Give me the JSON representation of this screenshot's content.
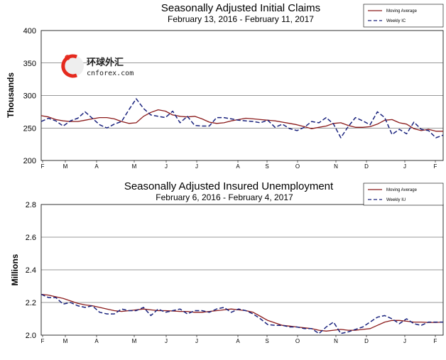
{
  "watermark": {
    "line1": "环球外汇",
    "line2": "cnforex.com"
  },
  "chart_data": [
    {
      "type": "line",
      "title": "Seasonally Adjusted Initial Claims",
      "subtitle": "February 13, 2016  -  February 11, 2017",
      "ylabel": "Thousands",
      "xlabel": "",
      "ylim": [
        200,
        400
      ],
      "yticks": [
        "200",
        "250",
        "300",
        "350",
        "400"
      ],
      "ytick_values": [
        200,
        250,
        300,
        350,
        400
      ],
      "grid": "horizontal",
      "legend_position": "top-right",
      "x_tick_labels": [
        "F",
        "M",
        "A",
        "M",
        "J",
        "J",
        "A",
        "S",
        "O",
        "N",
        "D",
        "J",
        "F"
      ],
      "series": [
        {
          "name": "Moving Average",
          "color": "#8b1a1a",
          "style": "solid",
          "values": [
            269,
            267,
            263,
            261,
            260,
            260,
            262,
            264,
            266,
            266,
            264,
            260,
            257,
            258,
            268,
            274,
            278,
            276,
            270,
            268,
            267,
            268,
            264,
            259,
            257,
            258,
            261,
            263,
            265,
            264,
            263,
            262,
            261,
            259,
            257,
            255,
            252,
            249,
            251,
            253,
            257,
            258,
            254,
            251,
            251,
            252,
            256,
            262,
            263,
            258,
            256,
            249,
            246,
            248,
            245,
            245
          ]
        },
        {
          "name": "Weekly IC",
          "color": "#1a237e",
          "style": "dashed",
          "values": [
            260,
            265,
            261,
            253,
            261,
            265,
            275,
            265,
            255,
            250,
            256,
            260,
            278,
            295,
            280,
            270,
            268,
            266,
            276,
            258,
            268,
            254,
            253,
            253,
            266,
            266,
            264,
            262,
            261,
            260,
            258,
            262,
            251,
            256,
            249,
            246,
            251,
            260,
            258,
            266,
            256,
            235,
            252,
            266,
            261,
            255,
            275,
            266,
            240,
            248,
            241,
            259,
            248,
            246,
            235,
            239
          ]
        }
      ]
    },
    {
      "type": "line",
      "title": "Seasonally Adjusted Insured Unemployment",
      "subtitle": "February 6, 2016  -  February 4, 2017",
      "ylabel": "Millions",
      "xlabel": "",
      "ylim": [
        2.0,
        2.8
      ],
      "yticks": [
        "2.0",
        "2.2",
        "2.4",
        "2.6",
        "2.8"
      ],
      "ytick_values": [
        2.0,
        2.2,
        2.4,
        2.6,
        2.8
      ],
      "grid": "horizontal",
      "legend_position": "top-right",
      "x_tick_labels": [
        "F",
        "M",
        "A",
        "M",
        "J",
        "J",
        "A",
        "S",
        "O",
        "N",
        "D",
        "J",
        "F"
      ],
      "series": [
        {
          "name": "Moving Average",
          "color": "#8b1a1a",
          "style": "solid",
          "values": [
            2.25,
            2.245,
            2.235,
            2.225,
            2.21,
            2.195,
            2.185,
            2.18,
            2.17,
            2.16,
            2.15,
            2.145,
            2.15,
            2.155,
            2.16,
            2.155,
            2.15,
            2.15,
            2.148,
            2.145,
            2.145,
            2.14,
            2.14,
            2.145,
            2.15,
            2.155,
            2.16,
            2.155,
            2.15,
            2.14,
            2.115,
            2.09,
            2.075,
            2.06,
            2.055,
            2.05,
            2.045,
            2.04,
            2.03,
            2.025,
            2.03,
            2.035,
            2.03,
            2.03,
            2.035,
            2.04,
            2.06,
            2.08,
            2.09,
            2.09,
            2.085,
            2.08,
            2.08,
            2.078,
            2.078,
            2.08
          ]
        },
        {
          "name": "Weekly IU",
          "color": "#1a237e",
          "style": "dashed",
          "values": [
            2.25,
            2.23,
            2.23,
            2.19,
            2.2,
            2.18,
            2.17,
            2.18,
            2.14,
            2.13,
            2.13,
            2.16,
            2.15,
            2.15,
            2.17,
            2.12,
            2.16,
            2.14,
            2.15,
            2.16,
            2.13,
            2.15,
            2.15,
            2.14,
            2.16,
            2.17,
            2.14,
            2.16,
            2.15,
            2.13,
            2.1,
            2.065,
            2.06,
            2.06,
            2.05,
            2.05,
            2.04,
            2.04,
            2.01,
            2.05,
            2.08,
            2.01,
            2.02,
            2.035,
            2.05,
            2.08,
            2.11,
            2.12,
            2.1,
            2.07,
            2.1,
            2.07,
            2.06,
            2.08,
            2.08,
            2.08
          ]
        }
      ]
    }
  ]
}
